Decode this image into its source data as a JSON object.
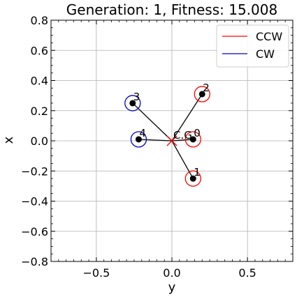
{
  "chart_data": {
    "type": "scatter",
    "title": "Generation: 1, Fitness: 15.008",
    "xlabel": "y",
    "ylabel": "x",
    "xlim": [
      -0.8,
      0.8
    ],
    "ylim": [
      -0.8,
      0.8
    ],
    "xticks": [
      -0.5,
      0.0,
      0.5
    ],
    "xtick_labels": [
      "−0.5",
      "0.0",
      "0.5"
    ],
    "yticks": [
      -0.8,
      -0.6,
      -0.4,
      -0.2,
      0.0,
      0.2,
      0.4,
      0.6,
      0.8
    ],
    "ytick_labels": [
      "−0.8",
      "−0.6",
      "−0.4",
      "−0.2",
      "0.0",
      "0.2",
      "0.4",
      "0.6",
      "0.8"
    ],
    "grid": true,
    "legend_position": "top-right",
    "center": {
      "label": "C.G.",
      "x": 0.0,
      "y": 0.0,
      "color": "#ff0000"
    },
    "rotors": [
      {
        "label": "0",
        "x": 0.14,
        "y": 0.01,
        "direction": "CCW"
      },
      {
        "label": "1",
        "x": 0.14,
        "y": -0.25,
        "direction": "CCW"
      },
      {
        "label": "2",
        "x": 0.2,
        "y": 0.31,
        "direction": "CCW"
      },
      {
        "label": "3",
        "x": -0.26,
        "y": 0.25,
        "direction": "CW"
      },
      {
        "label": "4",
        "x": -0.22,
        "y": 0.01,
        "direction": "CW"
      }
    ],
    "series": [
      {
        "name": "CCW",
        "color": "#ff0000"
      },
      {
        "name": "CW",
        "color": "#0000cc"
      }
    ]
  }
}
